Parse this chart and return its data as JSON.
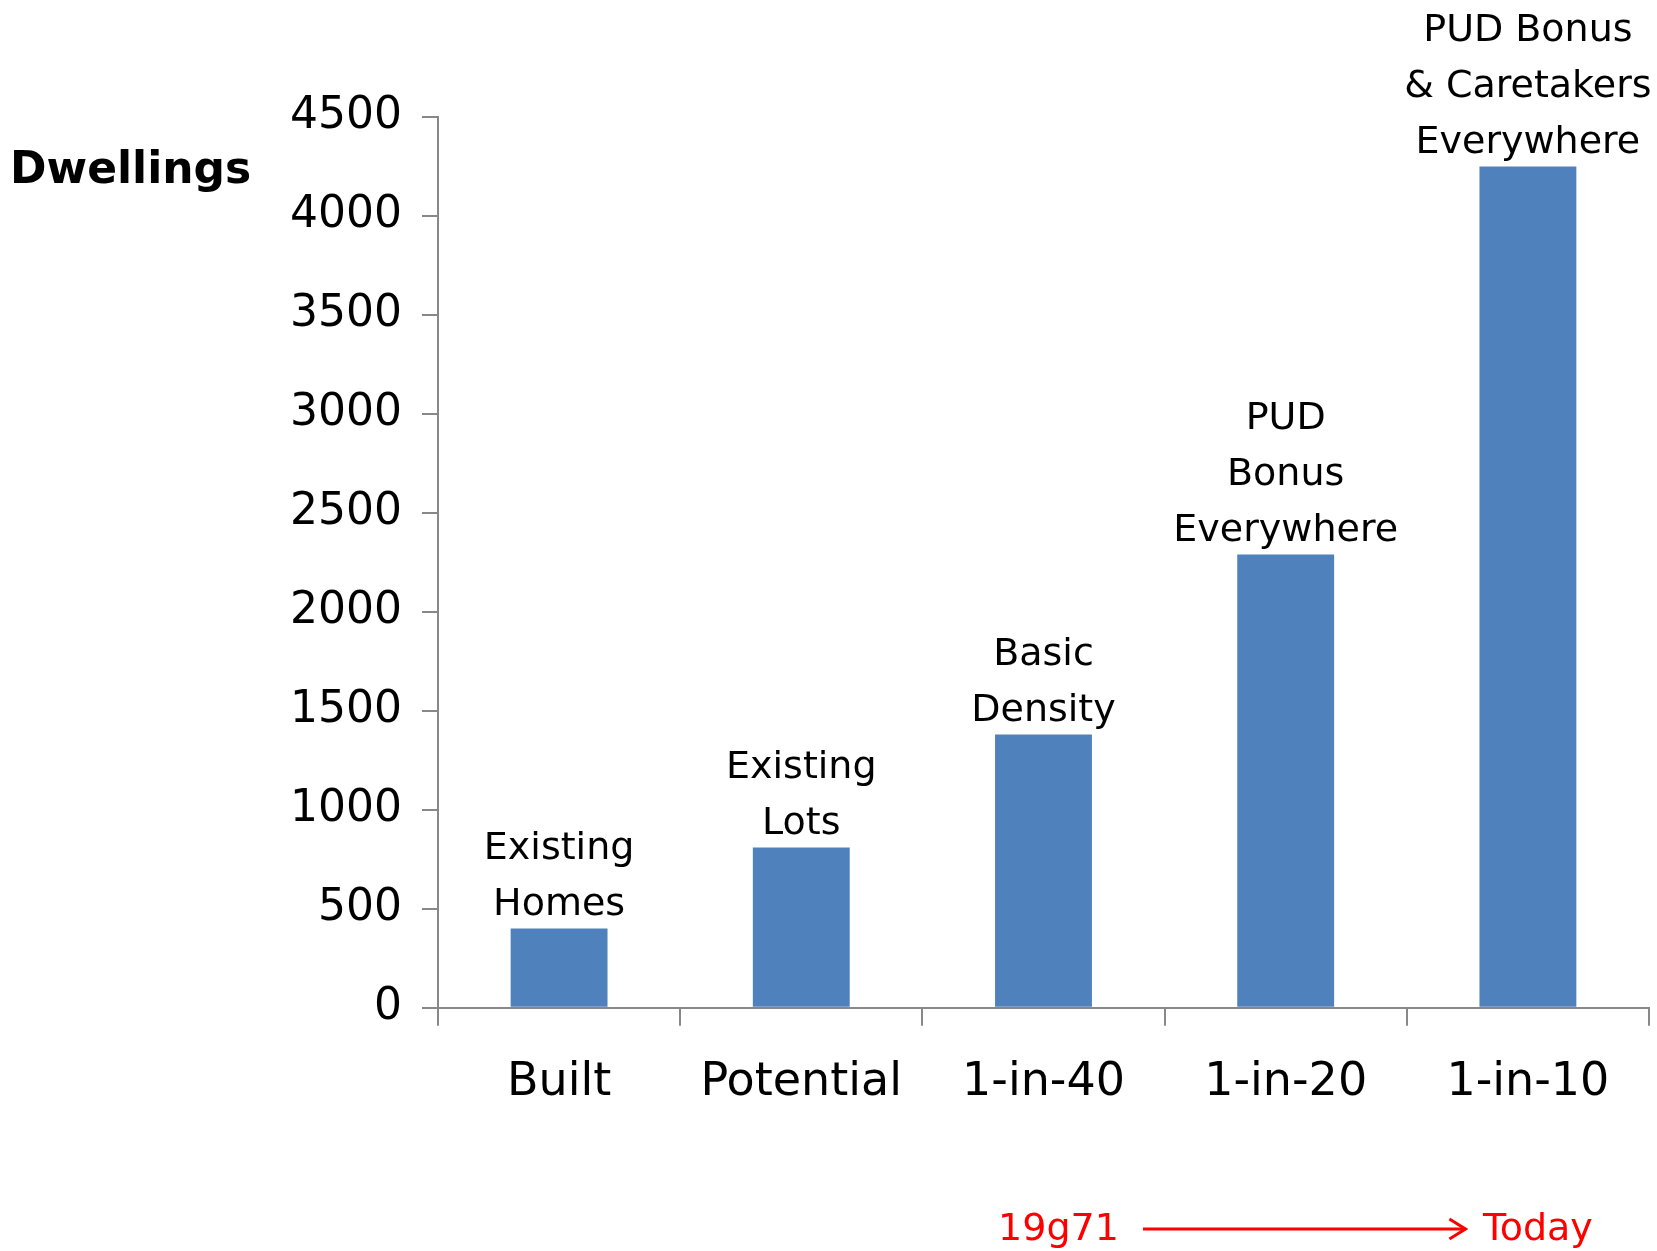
{
  "chart_data": {
    "type": "bar",
    "ylabel": "Dwellings",
    "categories": [
      "Built",
      "Potential",
      "1-in-40",
      "1-in-20",
      "1-in-10"
    ],
    "values": [
      400,
      810,
      1380,
      2290,
      4250
    ],
    "color": "#4f81bd",
    "ylim": [
      0,
      4500
    ],
    "yticks": [
      0,
      500,
      1000,
      1500,
      2000,
      2500,
      3000,
      3500,
      4000,
      4500
    ],
    "grid": false,
    "legend": false,
    "annotations": [
      {
        "text": "Existing\nHomes",
        "x": "Built",
        "y": 400
      },
      {
        "text": "Existing\nLots",
        "x": "Potential",
        "y": 810
      },
      {
        "text": "Basic\nDensity",
        "x": "1-in-40",
        "y": 1380
      },
      {
        "text": "PUD\nBonus\nEverywhere",
        "x": "1-in-20",
        "y": 2290
      },
      {
        "text": "PUD Bonus\n& Caretakers\nEverywhere",
        "x": "1-in-10",
        "y": 4250
      },
      "19g71",
      "Today"
    ]
  }
}
